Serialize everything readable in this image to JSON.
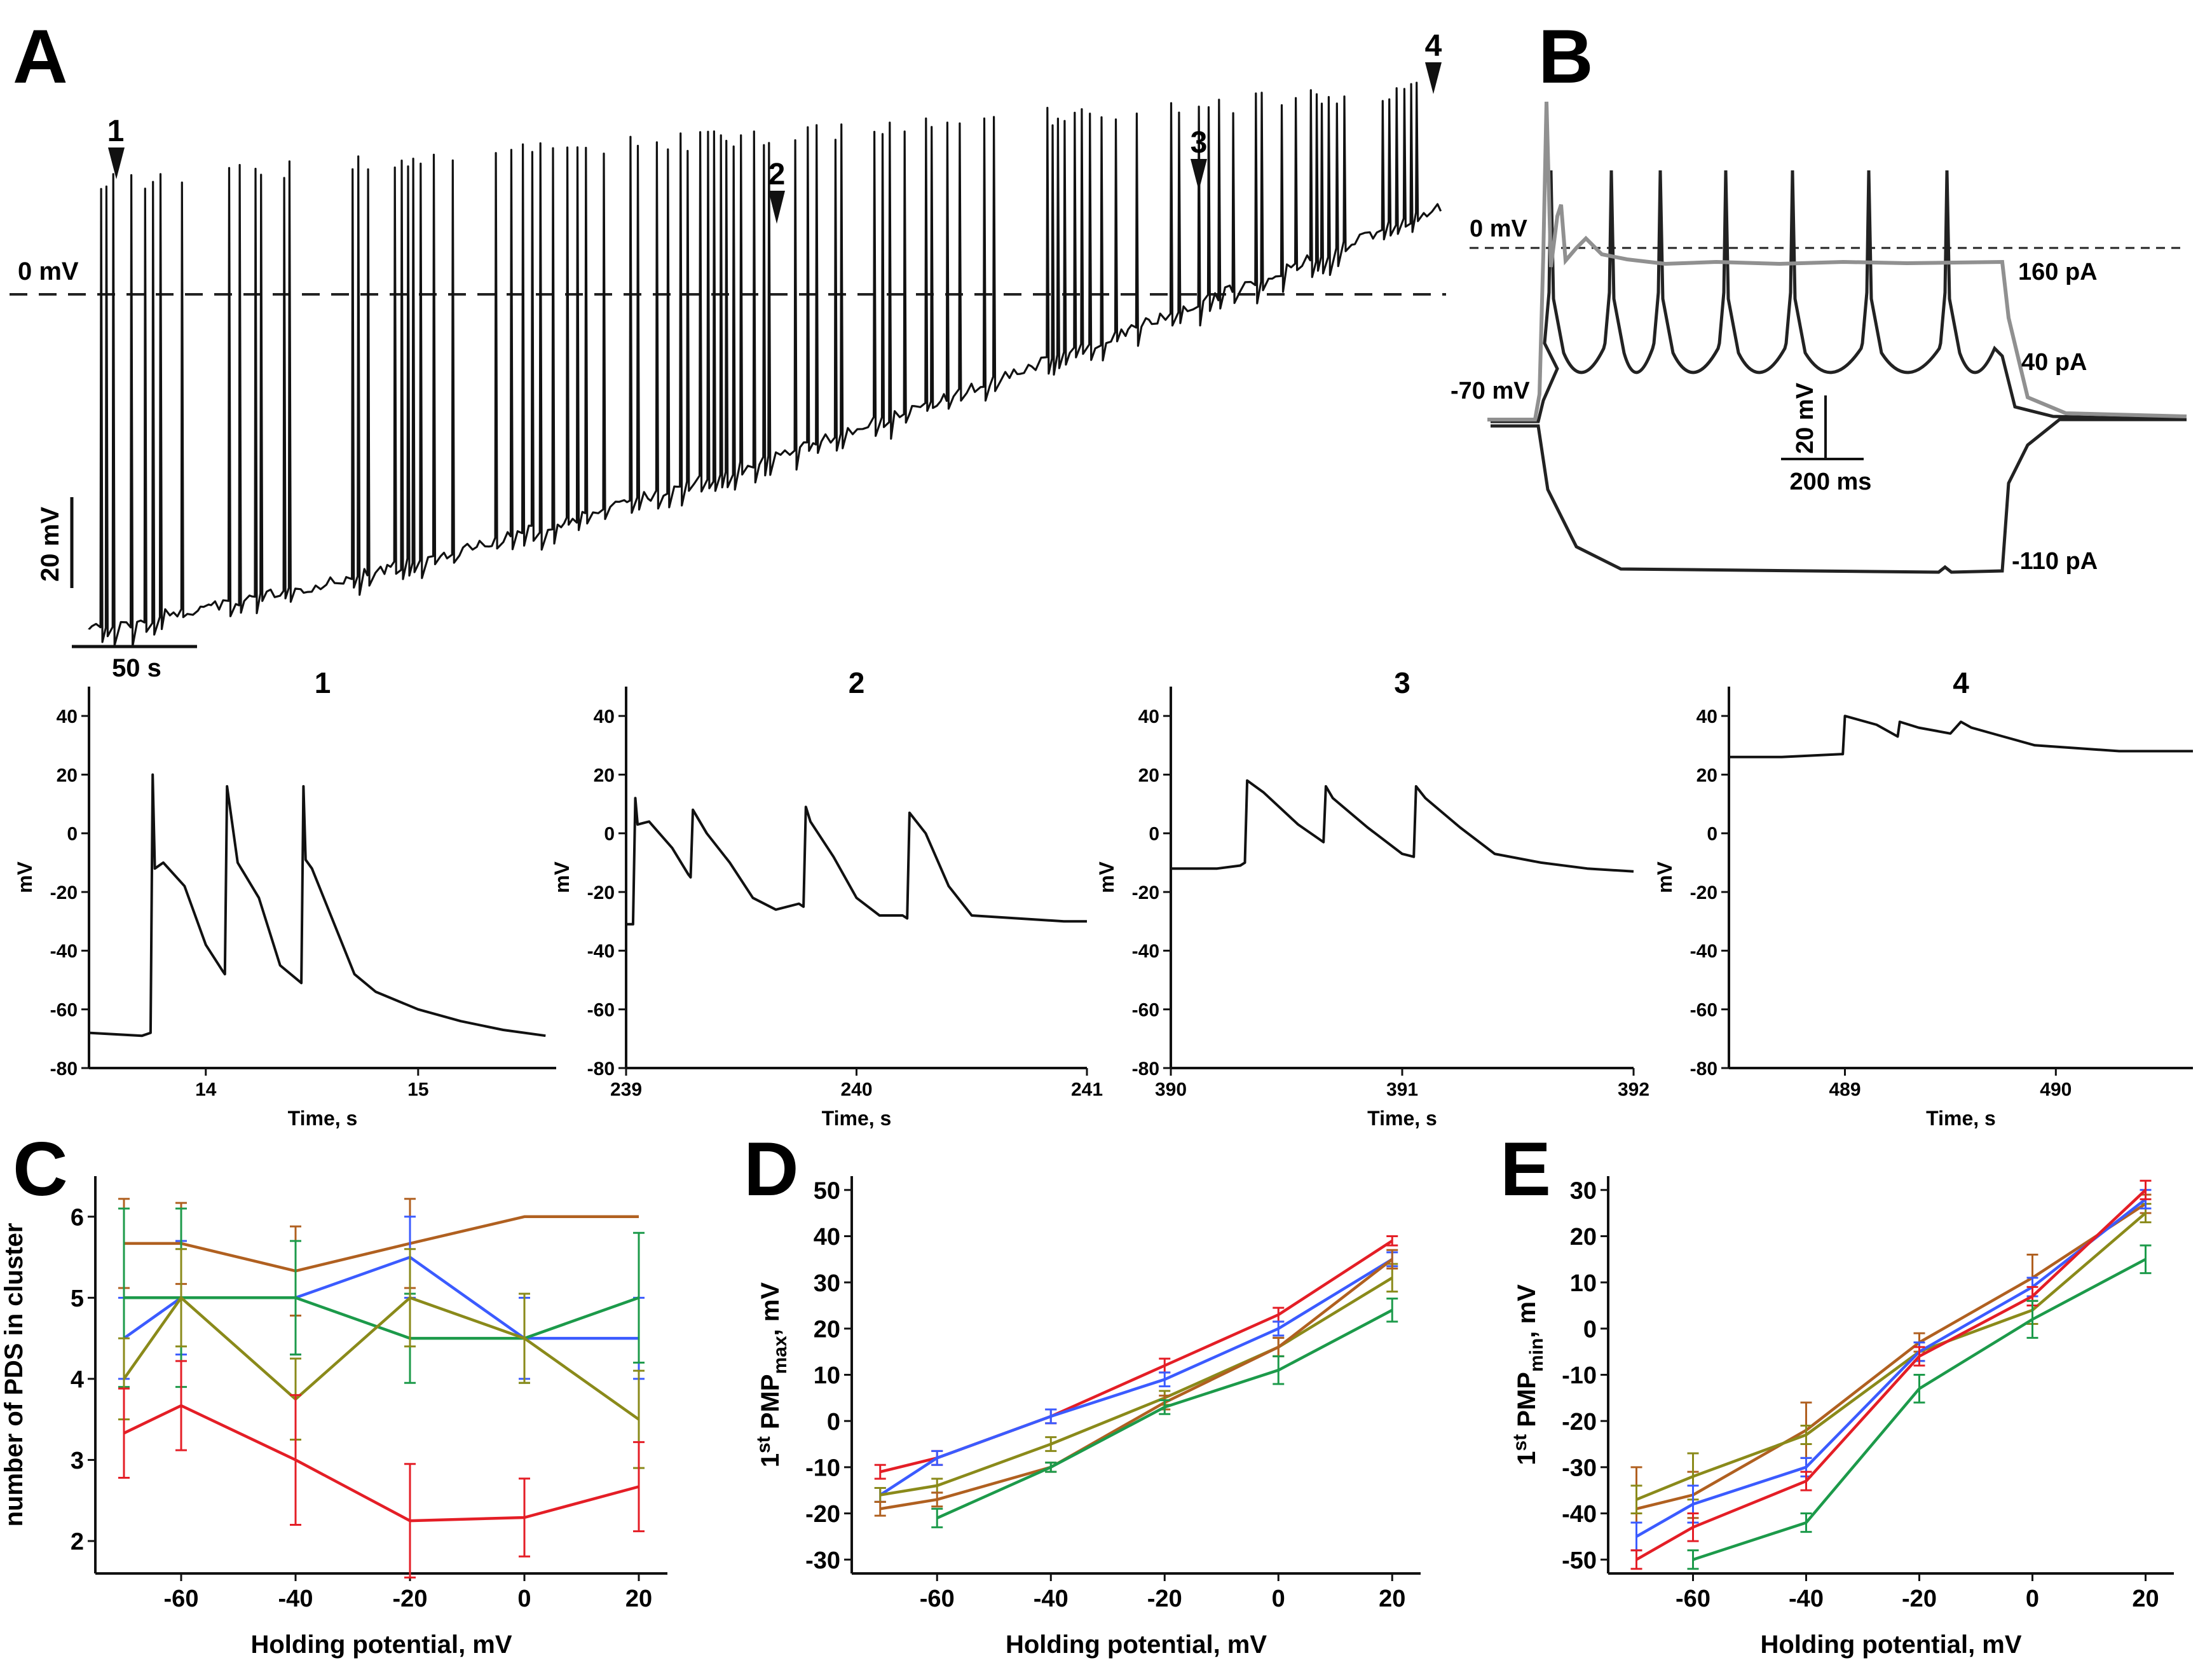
{
  "colors": {
    "red": "#e41e26",
    "blue": "#3b5bff",
    "green": "#1c9a4a",
    "olive": "#8a8a1a",
    "brown": "#b06020",
    "trace": "#111111",
    "trace_gray": "#909090"
  },
  "panel_A": {
    "letter": "A",
    "zero_label": "0 mV",
    "scalebar_v": "20 mV",
    "scalebar_h": "50 s",
    "markers": [
      "1",
      "2",
      "3",
      "4"
    ]
  },
  "panel_B": {
    "letter": "B",
    "zero_label": "0 mV",
    "rest_label": "-70 mV",
    "scalebar_v": "20 mV",
    "scalebar_h": "200 ms",
    "currents": [
      "160 pA",
      "40 pA",
      "-110 pA"
    ]
  },
  "panel_C": {
    "letter": "C"
  },
  "panel_D": {
    "letter": "D"
  },
  "panel_E": {
    "letter": "E"
  },
  "chart_data": [
    {
      "id": "trace1",
      "type": "line",
      "title": "1",
      "xlabel": "Time, s",
      "ylabel": "mV",
      "xlim": [
        13.45,
        15.65
      ],
      "ylim": [
        -80,
        50
      ],
      "xticks": [
        14,
        15
      ],
      "yticks": [
        40,
        20,
        0,
        -20,
        -40,
        -60,
        -80
      ],
      "series": [
        {
          "name": "trace",
          "x": [
            13.45,
            13.7,
            13.74,
            13.75,
            13.76,
            13.8,
            13.9,
            14.0,
            14.08,
            14.09,
            14.1,
            14.15,
            14.25,
            14.35,
            14.45,
            14.46,
            14.47,
            14.5,
            14.6,
            14.7,
            14.8,
            15.0,
            15.2,
            15.4,
            15.6
          ],
          "y": [
            -68,
            -69,
            -68,
            20,
            -12,
            -10,
            -18,
            -38,
            -47,
            -48,
            16,
            -10,
            -22,
            -45,
            -51,
            16,
            -9,
            -12,
            -30,
            -48,
            -54,
            -60,
            -64,
            -67,
            -69
          ]
        }
      ]
    },
    {
      "id": "trace2",
      "type": "line",
      "title": "2",
      "xlabel": "Time, s",
      "ylabel": "mV",
      "xlim": [
        239,
        241
      ],
      "ylim": [
        -80,
        50
      ],
      "xticks": [
        239,
        240,
        241
      ],
      "yticks": [
        40,
        20,
        0,
        -20,
        -40,
        -60,
        -80
      ],
      "series": [
        {
          "name": "trace",
          "x": [
            239.0,
            239.03,
            239.04,
            239.05,
            239.1,
            239.2,
            239.27,
            239.28,
            239.29,
            239.35,
            239.45,
            239.55,
            239.65,
            239.75,
            239.77,
            239.78,
            239.8,
            239.9,
            240.0,
            240.1,
            240.2,
            240.22,
            240.23,
            240.3,
            240.4,
            240.5,
            240.7,
            240.9,
            241.0
          ],
          "y": [
            -31,
            -31,
            12,
            3,
            4,
            -5,
            -14,
            -15,
            8,
            0,
            -10,
            -22,
            -26,
            -24,
            -25,
            9,
            4,
            -8,
            -22,
            -28,
            -28,
            -29,
            7,
            0,
            -18,
            -28,
            -29,
            -30,
            -30
          ]
        }
      ]
    },
    {
      "id": "trace3",
      "type": "line",
      "title": "3",
      "xlabel": "Time, s",
      "ylabel": "mV",
      "xlim": [
        390,
        392
      ],
      "ylim": [
        -80,
        50
      ],
      "xticks": [
        390,
        391,
        392
      ],
      "yticks": [
        40,
        20,
        0,
        -20,
        -40,
        -60,
        -80
      ],
      "series": [
        {
          "name": "trace",
          "x": [
            390.0,
            390.2,
            390.3,
            390.32,
            390.33,
            390.4,
            390.55,
            390.66,
            390.67,
            390.7,
            390.85,
            391.0,
            391.05,
            391.06,
            391.1,
            391.25,
            391.4,
            391.6,
            391.8,
            392.0
          ],
          "y": [
            -12,
            -12,
            -11,
            -10,
            18,
            14,
            3,
            -3,
            16,
            12,
            2,
            -7,
            -8,
            16,
            12,
            2,
            -7,
            -10,
            -12,
            -13
          ]
        }
      ]
    },
    {
      "id": "trace4",
      "type": "line",
      "title": "4",
      "xlabel": "Time, s",
      "ylabel": "mV",
      "xlim": [
        488.45,
        490.65
      ],
      "ylim": [
        -80,
        50
      ],
      "xticks": [
        489,
        490
      ],
      "yticks": [
        40,
        20,
        0,
        -20,
        -40,
        -60,
        -80
      ],
      "series": [
        {
          "name": "trace",
          "x": [
            488.45,
            488.7,
            488.98,
            488.99,
            489.0,
            489.15,
            489.25,
            489.26,
            489.35,
            489.5,
            489.55,
            489.6,
            489.75,
            489.9,
            490.1,
            490.3,
            490.5,
            490.65
          ],
          "y": [
            26,
            26,
            27,
            27,
            40,
            37,
            33,
            38,
            36,
            34,
            38,
            36,
            33,
            30,
            29,
            28,
            28,
            28
          ]
        }
      ]
    },
    {
      "id": "C",
      "type": "line",
      "title": "",
      "xlabel": "Holding potential, mV",
      "ylabel": "number of PDS in cluster",
      "xlim": [
        -75,
        25
      ],
      "ylim": [
        1.6,
        6.5
      ],
      "xticks": [
        -60,
        -40,
        -20,
        0,
        20
      ],
      "yticks": [
        2,
        3,
        4,
        5,
        6
      ],
      "series": [
        {
          "name": "brown",
          "x": [
            -70,
            -60,
            -40,
            -20,
            0,
            20
          ],
          "y": [
            5.67,
            5.67,
            5.33,
            5.67,
            6.0,
            6.0
          ],
          "err": [
            0.55,
            0.5,
            0.55,
            0.55,
            0,
            0
          ]
        },
        {
          "name": "blue",
          "x": [
            -70,
            -60,
            -40,
            -20,
            0,
            20
          ],
          "y": [
            4.5,
            5.0,
            5.0,
            5.5,
            4.5,
            4.5
          ],
          "err": [
            0.5,
            0.7,
            0.7,
            0.5,
            0.5,
            0.5
          ]
        },
        {
          "name": "green",
          "x": [
            -70,
            -60,
            -40,
            -20,
            0,
            20
          ],
          "y": [
            5.0,
            5.0,
            5.0,
            4.5,
            4.5,
            5.0
          ],
          "err": [
            1.1,
            1.1,
            0.7,
            0.55,
            0.55,
            0.8
          ]
        },
        {
          "name": "olive",
          "x": [
            -70,
            -60,
            -40,
            -20,
            0,
            20
          ],
          "y": [
            4.0,
            5.0,
            3.75,
            5.0,
            4.5,
            3.5
          ],
          "err": [
            0.5,
            0.6,
            0.5,
            0.6,
            0.55,
            0.6
          ]
        },
        {
          "name": "red",
          "x": [
            -70,
            -60,
            -40,
            -20,
            0,
            20
          ],
          "y": [
            3.33,
            3.67,
            3.0,
            2.25,
            2.29,
            2.67
          ],
          "err": [
            0.55,
            0.55,
            0.8,
            0.7,
            0.48,
            0.55
          ]
        }
      ]
    },
    {
      "id": "D",
      "type": "line",
      "title": "",
      "xlabel": "Holding potential, mV",
      "ylabel_main": "1",
      "ylabel_sup": "st",
      "ylabel_rest": " PMP",
      "ylabel_sub": "max",
      "ylabel_end": ", mV",
      "xlim": [
        -75,
        25
      ],
      "ylim": [
        -33,
        53
      ],
      "xticks": [
        -60,
        -40,
        -20,
        0,
        20
      ],
      "yticks": [
        -30,
        -20,
        -10,
        0,
        10,
        20,
        30,
        40,
        50
      ],
      "series": [
        {
          "name": "red",
          "x": [
            -70,
            -60,
            -40,
            -20,
            0,
            20
          ],
          "y": [
            -11,
            -8,
            1,
            12,
            23,
            39
          ],
          "err": [
            1.5,
            1.5,
            1.5,
            1.5,
            1.5,
            1
          ]
        },
        {
          "name": "blue",
          "x": [
            -70,
            -60,
            -40,
            -20,
            0,
            20
          ],
          "y": [
            -16,
            -8,
            1,
            9,
            20,
            35
          ],
          "err": [
            1.5,
            1.5,
            1.5,
            1.5,
            1.5,
            1.5
          ]
        },
        {
          "name": "olive",
          "x": [
            -70,
            -60,
            -40,
            -20,
            0,
            20
          ],
          "y": [
            -16,
            -14,
            -5,
            5,
            16,
            31
          ],
          "err": [
            1.5,
            1.5,
            1.5,
            1.5,
            2,
            3
          ]
        },
        {
          "name": "brown",
          "x": [
            -70,
            -60,
            -40,
            -20,
            0,
            20
          ],
          "y": [
            -19,
            -17,
            -10,
            4,
            16,
            35
          ],
          "err": [
            1.5,
            1.5,
            1,
            1.5,
            2,
            2
          ]
        },
        {
          "name": "green",
          "x": [
            -60,
            -40,
            -20,
            0,
            20
          ],
          "y": [
            -21,
            -10,
            3,
            11,
            24
          ],
          "err": [
            2,
            1,
            1.5,
            3,
            2.5
          ]
        }
      ]
    },
    {
      "id": "E",
      "type": "line",
      "title": "",
      "xlabel": "Holding potential, mV",
      "ylabel_main": "1",
      "ylabel_sup": "st",
      "ylabel_rest": " PMP",
      "ylabel_sub": "min",
      "ylabel_end": ", mV",
      "xlim": [
        -75,
        25
      ],
      "ylim": [
        -53,
        33
      ],
      "xticks": [
        -60,
        -40,
        -20,
        0,
        20
      ],
      "yticks": [
        -50,
        -40,
        -30,
        -20,
        -10,
        0,
        10,
        20,
        30
      ],
      "series": [
        {
          "name": "brown",
          "x": [
            -70,
            -60,
            -40,
            -20,
            0,
            20
          ],
          "y": [
            -39,
            -36,
            -22,
            -3,
            11,
            27
          ],
          "err": [
            9,
            5,
            6,
            2,
            5,
            2
          ]
        },
        {
          "name": "olive",
          "x": [
            -70,
            -60,
            -40,
            -20,
            0,
            20
          ],
          "y": [
            -37,
            -32,
            -23,
            -5,
            4,
            25
          ],
          "err": [
            3,
            5,
            2,
            2,
            3,
            2
          ]
        },
        {
          "name": "blue",
          "x": [
            -70,
            -60,
            -40,
            -20,
            0,
            20
          ],
          "y": [
            -45,
            -38,
            -30,
            -5,
            9,
            28
          ],
          "err": [
            3,
            4,
            2,
            2,
            2,
            2
          ]
        },
        {
          "name": "red",
          "x": [
            -70,
            -60,
            -40,
            -20,
            0,
            20
          ],
          "y": [
            -50,
            -43,
            -33,
            -6,
            7,
            30
          ],
          "err": [
            2,
            3,
            2,
            2,
            2,
            2
          ]
        },
        {
          "name": "green",
          "x": [
            -60,
            -40,
            -20,
            0,
            20
          ],
          "y": [
            -50,
            -42,
            -13,
            2,
            15
          ],
          "err": [
            2,
            2,
            3,
            4,
            3
          ]
        }
      ]
    }
  ]
}
